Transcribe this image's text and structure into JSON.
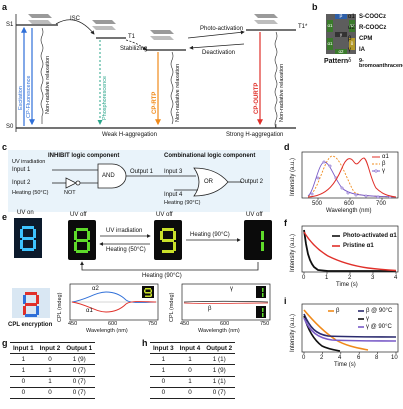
{
  "panel_labels": {
    "a": "a",
    "b": "b",
    "c": "c",
    "d": "d",
    "e": "e",
    "f": "f",
    "g": "g",
    "h": "h",
    "i": "i"
  },
  "panel_a": {
    "s1": "S1",
    "s0": "S0",
    "t1": "T1",
    "t1p": "T1*",
    "isc": "ISC",
    "stabilizing": "Stabilizing",
    "photo_activation": "Photo-activation",
    "deactivation": "Deactivation",
    "excitation": "Excitation",
    "cp_fluorescence": "CP-Fluorescence",
    "non_radiative_1": "Non-radiative relaxation",
    "phosphorescence": "Phosphorescence",
    "cp_rtp": "CP-RTP",
    "non_radiative_2": "Non-radiative relaxation",
    "cp_ourtp": "CP-OURTP",
    "non_radiative_3": "Non-radiative relaxation",
    "weak": "Weak H-aggregation",
    "strong": "Strong H-aggregation"
  },
  "panel_b": {
    "pattern": "Pattern",
    "cells": [
      "α1",
      "β",
      "α2",
      "γ",
      "α1",
      "δ",
      "α2"
    ],
    "legend": [
      {
        "sym": "α1",
        "text": "S-COOCz"
      },
      {
        "sym": "α2",
        "text": "R-COOCz"
      },
      {
        "sym": "β",
        "text": "CPM"
      },
      {
        "sym": "γ",
        "text": "IA"
      },
      {
        "sym": "δ",
        "text": "9-bromoanthracene"
      }
    ]
  },
  "panel_c": {
    "inhibit": "INHIBIT logic component",
    "combinational": "Combinational logic component",
    "uv": "UV irradiation",
    "input1": "Input 1",
    "input2": "Input 2",
    "heating50": "Heating (50°C)",
    "not": "NOT",
    "and": "AND",
    "output1": "Output 1",
    "input3": "Input 3",
    "input4": "Input 4",
    "heating90": "Heating (90°C)",
    "or": "OR",
    "output2": "Output 2"
  },
  "panel_d": {
    "ylabel": "Intensity (a.u.)",
    "xlabel": "Wavelength (nm)",
    "ticks": [
      "500",
      "600",
      "700"
    ],
    "legend": [
      "α1",
      "β",
      "γ"
    ]
  },
  "panel_e": {
    "uv_on": "UV on",
    "uv_off_1": "UV off",
    "uv_off_2": "UV off",
    "uv_off_3": "UV off",
    "uv_irr": "UV irradiation",
    "heat50": "Heating (50°C)",
    "heat90a": "Heating (90°C)",
    "heat90b": "Heating (90°C)",
    "cpl_enc": "CPL encryption",
    "cpl_ylabel": "CPL (mdeg)",
    "wl_label": "Wavelength (nm)",
    "ticks_l": [
      "450",
      "600",
      "750"
    ],
    "ticks_r": [
      "450",
      "600",
      "750"
    ],
    "curve_a2": "α2",
    "curve_a1": "α1",
    "curve_g": "γ",
    "curve_b": "β"
  },
  "panel_f": {
    "ylabel": "Intensity (a.u.)",
    "xlabel": "Time (s)",
    "ticks": [
      "0",
      "1",
      "2",
      "3",
      "4"
    ],
    "legend": [
      "Photo-activated α1",
      "Pristine α1"
    ]
  },
  "panel_i": {
    "ylabel": "Intensity (a.u.)",
    "xlabel": "Time (s)",
    "ticks": [
      "0",
      "2",
      "4",
      "6",
      "8",
      "10"
    ],
    "legend": [
      "β",
      "β @ 90°C",
      "γ",
      "γ @ 90°C"
    ]
  },
  "table_g": {
    "headers": [
      "Input 1",
      "Input 2",
      "Output 1"
    ],
    "rows": [
      [
        "1",
        "0",
        "1 (9)"
      ],
      [
        "1",
        "1",
        "0 (7)"
      ],
      [
        "0",
        "1",
        "0 (7)"
      ],
      [
        "0",
        "0",
        "0 (7)"
      ]
    ]
  },
  "table_h": {
    "headers": [
      "Input 3",
      "Input 4",
      "Output 2"
    ],
    "rows": [
      [
        "1",
        "1",
        "1 (1)"
      ],
      [
        "1",
        "0",
        "1 (9)"
      ],
      [
        "0",
        "1",
        "1 (1)"
      ],
      [
        "0",
        "0",
        "0 (7)"
      ]
    ]
  },
  "colors": {
    "red": "#e0302a",
    "orange": "#f08a1a",
    "purple": "#7a5cc8",
    "blue": "#2f6fd8",
    "black": "#111111",
    "green": "#22c43a"
  }
}
